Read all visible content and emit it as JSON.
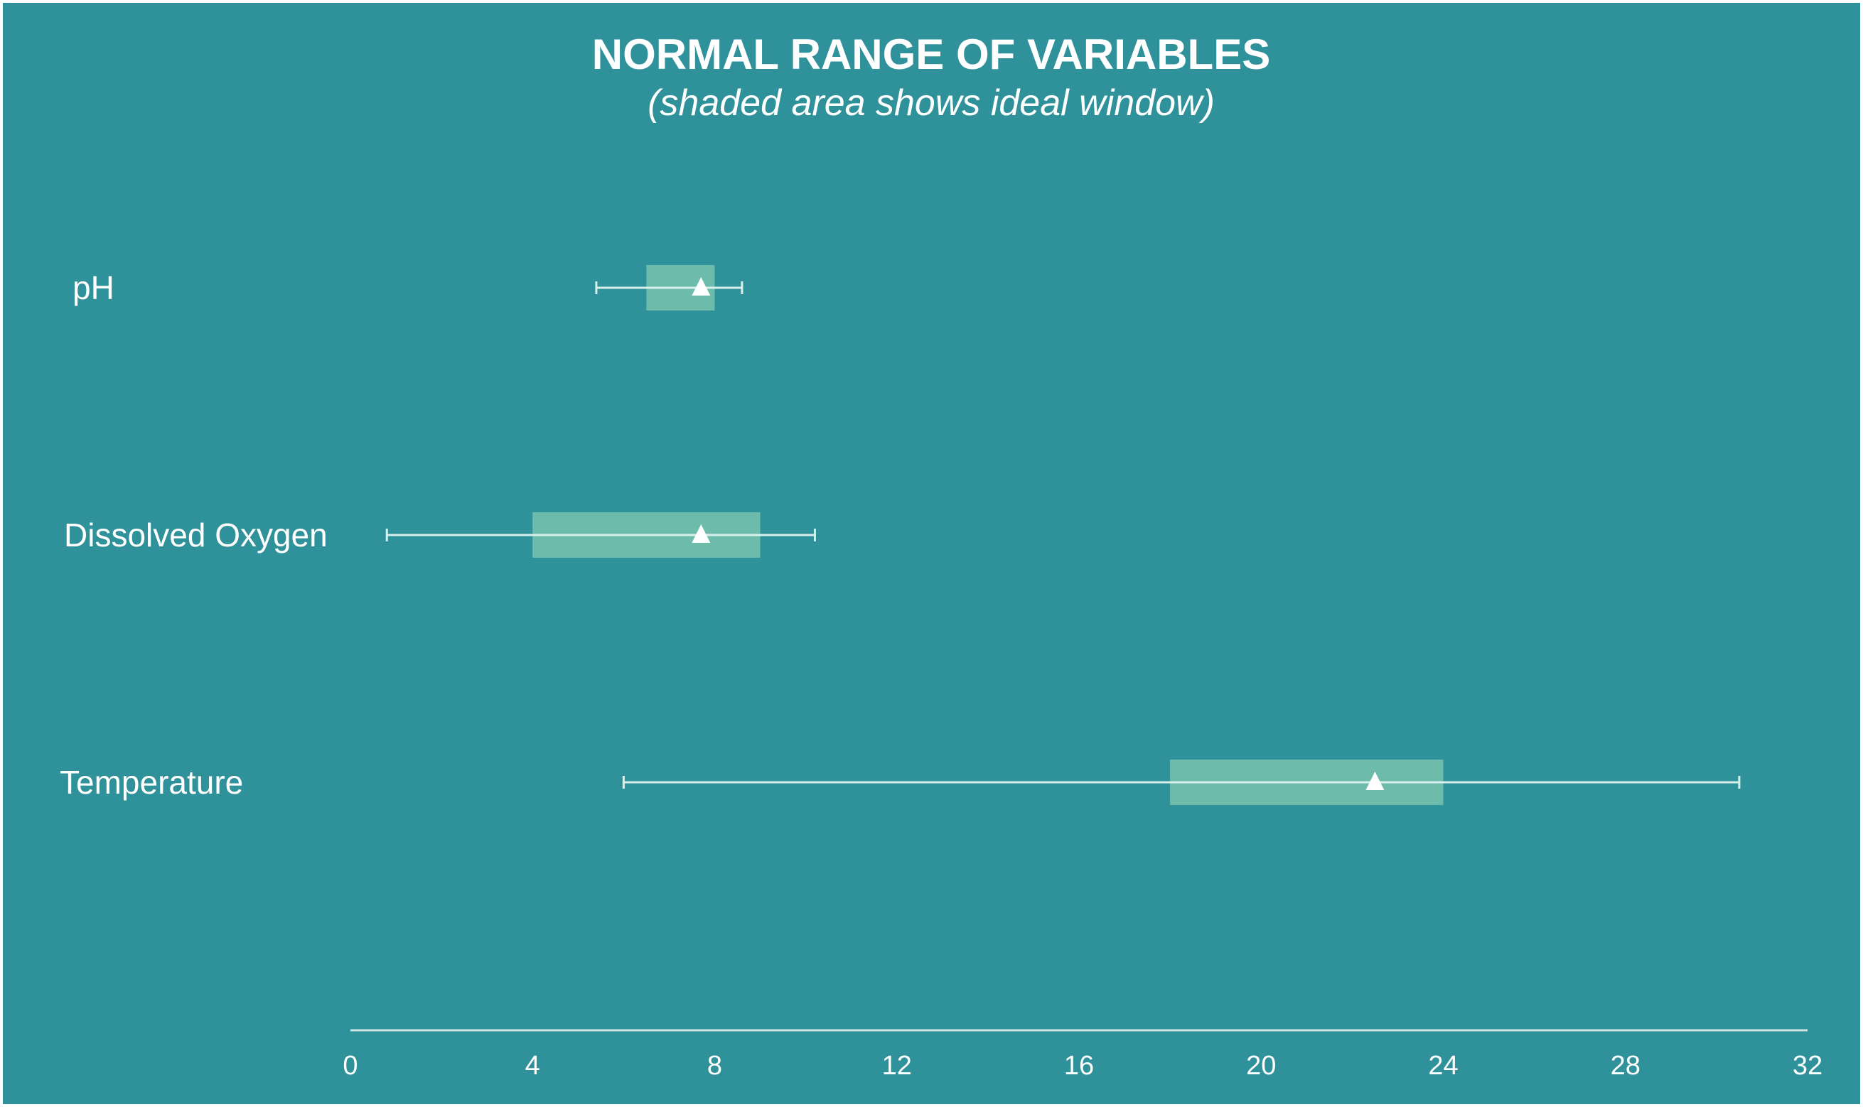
{
  "chart_data": {
    "type": "range",
    "title": "NORMAL RANGE OF VARIABLES",
    "subtitle": "(shaded area shows ideal window)",
    "xlim": [
      0,
      32
    ],
    "x_ticks": [
      0,
      4,
      8,
      12,
      16,
      20,
      24,
      28,
      32
    ],
    "x_tick_labels": [
      "0",
      "4",
      "8",
      "12",
      "16",
      "20",
      "24",
      "28",
      "32"
    ],
    "grid": false,
    "categories": [
      "pH",
      "Dissolved Oxygen",
      "Temperature"
    ],
    "series": [
      {
        "category": "pH",
        "min": 5.4,
        "max": 8.6,
        "ideal_low": 6.5,
        "ideal_high": 8.0,
        "marker": 7.7
      },
      {
        "category": "Dissolved Oxygen",
        "min": 0.8,
        "max": 10.2,
        "ideal_low": 4.0,
        "ideal_high": 9.0,
        "marker": 7.7
      },
      {
        "category": "Temperature",
        "min": 6.0,
        "max": 30.5,
        "ideal_low": 18.0,
        "ideal_high": 24.0,
        "marker": 22.5
      }
    ],
    "colors": {
      "background": "#2f9199",
      "ideal_window": "#6dbcab",
      "range_line": "#d8f0ec",
      "marker": "#ffffff",
      "axis": "#cfe3e3",
      "text": "#ffffff"
    }
  }
}
